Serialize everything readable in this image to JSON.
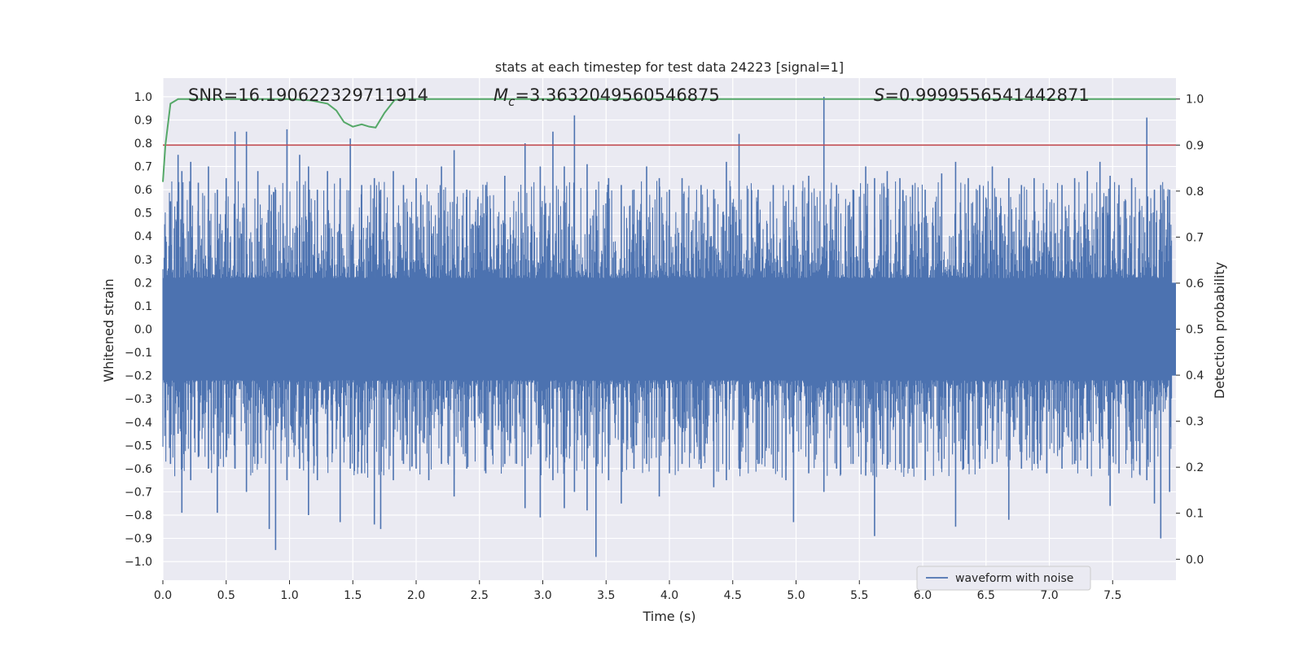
{
  "chart_data": {
    "type": "line",
    "title": "stats at each timestep for test data 24223 [signal=1]",
    "xlabel": "Time (s)",
    "ylabel_left": "Whitened strain",
    "ylabel_right": "Detection probability",
    "xlim": [
      0.0,
      8.0
    ],
    "ylim_left": [
      -1.08,
      1.08
    ],
    "ylim_right": [
      -0.0455,
      1.0455
    ],
    "x_ticks": [
      "0.0",
      "0.5",
      "1.0",
      "1.5",
      "2.0",
      "2.5",
      "3.0",
      "3.5",
      "4.0",
      "4.5",
      "5.0",
      "5.5",
      "6.0",
      "6.5",
      "7.0",
      "7.5"
    ],
    "y_ticks_left": [
      "1.0",
      "0.9",
      "0.8",
      "0.7",
      "0.6",
      "0.5",
      "0.4",
      "0.3",
      "0.2",
      "0.1",
      "0.0",
      "−0.1",
      "−0.2",
      "−0.3",
      "−0.4",
      "−0.5",
      "−0.6",
      "−0.7",
      "−0.8",
      "−0.9",
      "−1.0"
    ],
    "y_ticks_right": [
      "1.0",
      "0.9",
      "0.8",
      "0.7",
      "0.6",
      "0.5",
      "0.4",
      "0.3",
      "0.2",
      "0.1",
      "0.0"
    ],
    "grid": true,
    "legend_position": "lower-right",
    "annotations": {
      "snr": "SNR=16.190622329711914",
      "mc_symbol": "M",
      "mc_sub": "c",
      "mc_value": "=3.3632049560546875",
      "s_symbol": "S",
      "s_value": "=0.9999556541442871"
    },
    "threshold": {
      "axis": "right",
      "value": 0.9
    },
    "series": [
      {
        "name": "waveform with noise",
        "axis": "left",
        "envelope_note": "dense noise; representative peak values",
        "peaks": [
          [
            0.06,
            0.55,
            -0.58
          ],
          [
            0.12,
            0.75,
            -0.45
          ],
          [
            0.15,
            0.68,
            -0.79
          ],
          [
            0.22,
            0.72,
            -0.65
          ],
          [
            0.28,
            0.63,
            -0.55
          ],
          [
            0.36,
            0.7,
            -0.6
          ],
          [
            0.43,
            0.6,
            -0.79
          ],
          [
            0.5,
            0.65,
            -0.55
          ],
          [
            0.57,
            0.85,
            -0.6
          ],
          [
            0.66,
            0.85,
            -0.7
          ],
          [
            0.75,
            0.68,
            -0.58
          ],
          [
            0.84,
            0.62,
            -0.86
          ],
          [
            0.89,
            0.6,
            -0.95
          ],
          [
            0.98,
            0.86,
            -0.65
          ],
          [
            1.08,
            0.75,
            -0.6
          ],
          [
            1.15,
            0.7,
            -0.8
          ],
          [
            1.22,
            0.6,
            -0.65
          ],
          [
            1.3,
            0.68,
            -0.55
          ],
          [
            1.4,
            0.65,
            -0.83
          ],
          [
            1.48,
            0.82,
            -0.6
          ],
          [
            1.57,
            0.62,
            -0.62
          ],
          [
            1.67,
            0.65,
            -0.84
          ],
          [
            1.72,
            0.6,
            -0.86
          ],
          [
            1.82,
            0.68,
            -0.65
          ],
          [
            1.9,
            0.62,
            -0.58
          ],
          [
            2.0,
            0.65,
            -0.6
          ],
          [
            2.1,
            0.55,
            -0.65
          ],
          [
            2.2,
            0.7,
            -0.58
          ],
          [
            2.3,
            0.77,
            -0.72
          ],
          [
            2.4,
            0.6,
            -0.6
          ],
          [
            2.55,
            0.62,
            -0.62
          ],
          [
            2.7,
            0.66,
            -0.58
          ],
          [
            2.86,
            0.8,
            -0.77
          ],
          [
            2.98,
            0.7,
            -0.81
          ],
          [
            3.08,
            0.85,
            -0.65
          ],
          [
            3.17,
            0.7,
            -0.77
          ],
          [
            3.25,
            0.92,
            -0.7
          ],
          [
            3.35,
            0.71,
            -0.78
          ],
          [
            3.42,
            0.6,
            -0.98
          ],
          [
            3.52,
            0.65,
            -0.65
          ],
          [
            3.62,
            0.62,
            -0.75
          ],
          [
            3.72,
            0.6,
            -0.6
          ],
          [
            3.82,
            0.7,
            -0.58
          ],
          [
            3.92,
            0.65,
            -0.72
          ],
          [
            4.0,
            0.6,
            -0.62
          ],
          [
            4.1,
            0.65,
            -0.58
          ],
          [
            4.25,
            0.62,
            -0.6
          ],
          [
            4.35,
            0.6,
            -0.68
          ],
          [
            4.45,
            0.72,
            -0.65
          ],
          [
            4.55,
            0.84,
            -0.6
          ],
          [
            4.7,
            0.6,
            -0.58
          ],
          [
            4.82,
            0.62,
            -0.6
          ],
          [
            4.92,
            0.55,
            -0.65
          ],
          [
            4.98,
            0.62,
            -0.83
          ],
          [
            5.1,
            0.66,
            -0.62
          ],
          [
            5.22,
            1.0,
            -0.7
          ],
          [
            5.32,
            0.62,
            -0.6
          ],
          [
            5.45,
            0.6,
            -0.58
          ],
          [
            5.55,
            0.7,
            -0.63
          ],
          [
            5.62,
            0.65,
            -0.89
          ],
          [
            5.72,
            0.68,
            -0.6
          ],
          [
            5.82,
            0.65,
            -0.58
          ],
          [
            5.92,
            0.62,
            -0.6
          ],
          [
            6.02,
            0.6,
            -0.65
          ],
          [
            6.15,
            0.67,
            -0.6
          ],
          [
            6.26,
            0.72,
            -0.85
          ],
          [
            6.36,
            0.65,
            -0.58
          ],
          [
            6.45,
            0.62,
            -0.6
          ],
          [
            6.55,
            0.7,
            -0.58
          ],
          [
            6.68,
            0.65,
            -0.82
          ],
          [
            6.78,
            0.62,
            -0.6
          ],
          [
            6.88,
            0.65,
            -0.58
          ],
          [
            6.98,
            0.6,
            -0.62
          ],
          [
            7.1,
            0.62,
            -0.6
          ],
          [
            7.2,
            0.65,
            -0.58
          ],
          [
            7.3,
            0.68,
            -0.6
          ],
          [
            7.4,
            0.72,
            -0.6
          ],
          [
            7.48,
            0.66,
            -0.76
          ],
          [
            7.55,
            0.62,
            -0.62
          ],
          [
            7.65,
            0.65,
            -0.58
          ],
          [
            7.77,
            0.91,
            -0.65
          ],
          [
            7.83,
            0.6,
            -0.75
          ],
          [
            7.88,
            0.62,
            -0.9
          ],
          [
            7.95,
            0.6,
            -0.7
          ]
        ],
        "color": "#4c72b0"
      },
      {
        "name": "detection probability",
        "axis": "right",
        "x": [
          0.0,
          0.02,
          0.06,
          0.12,
          0.5,
          1.0,
          1.17,
          1.3,
          1.37,
          1.43,
          1.5,
          1.57,
          1.63,
          1.68,
          1.75,
          1.83,
          1.9,
          2.0,
          8.0
        ],
        "values": [
          0.82,
          0.9,
          0.99,
          1.0,
          1.0,
          1.0,
          0.997,
          0.99,
          0.975,
          0.95,
          0.94,
          0.945,
          0.94,
          0.938,
          0.97,
          0.998,
          1.0,
          1.0,
          1.0
        ],
        "color": "#55a868"
      }
    ],
    "threshold_color": "#c44e52",
    "legend_entries": [
      "waveform with noise"
    ]
  }
}
